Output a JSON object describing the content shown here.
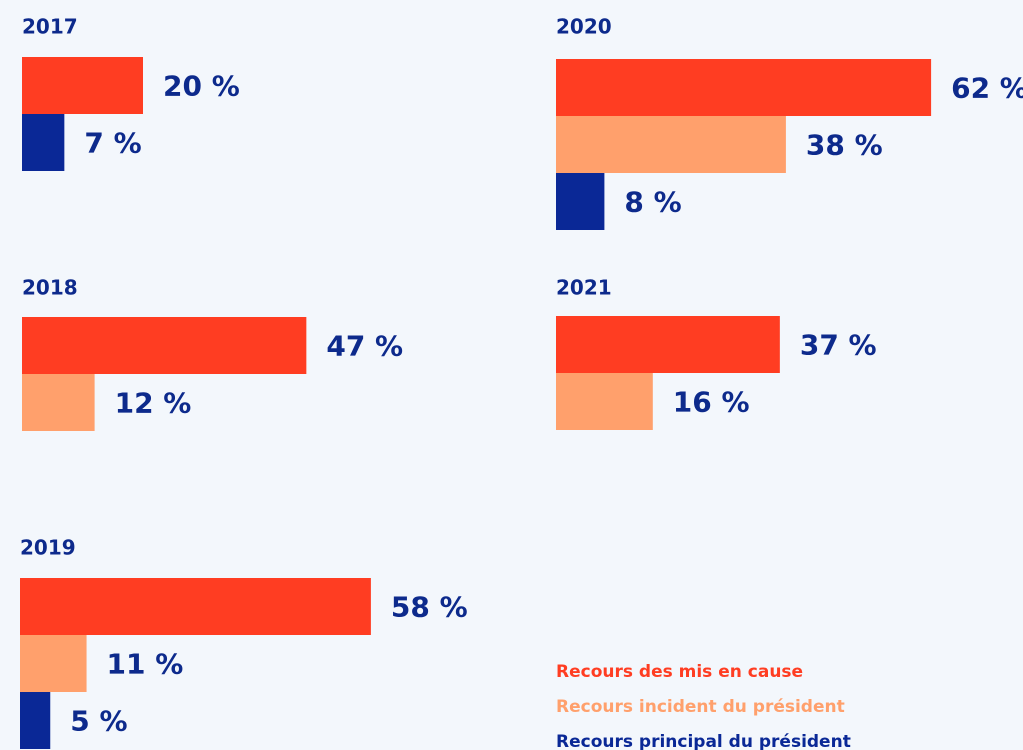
{
  "chart_data": {
    "type": "bar",
    "categories": [
      "2017",
      "2018",
      "2019",
      "2020",
      "2021"
    ],
    "series": [
      {
        "name": "Recours des mis en cause",
        "color": "#ff3d22",
        "values": [
          20,
          47,
          58,
          62,
          37
        ],
        "value_labels": [
          "20 %",
          "47 %",
          "58 %",
          "62 %",
          "37 %"
        ]
      },
      {
        "name": "Recours incident du président",
        "color": "#ffa06c",
        "values": [
          null,
          12,
          11,
          38,
          16
        ],
        "value_labels": [
          null,
          "12 %",
          "11 %",
          "38 %",
          "16 %"
        ]
      },
      {
        "name": "Recours principal du président",
        "color": "#0a2896",
        "values": [
          7,
          null,
          5,
          8,
          null
        ],
        "value_labels": [
          "7 %",
          null,
          "5 %",
          "8 %",
          null
        ]
      }
    ]
  }
}
